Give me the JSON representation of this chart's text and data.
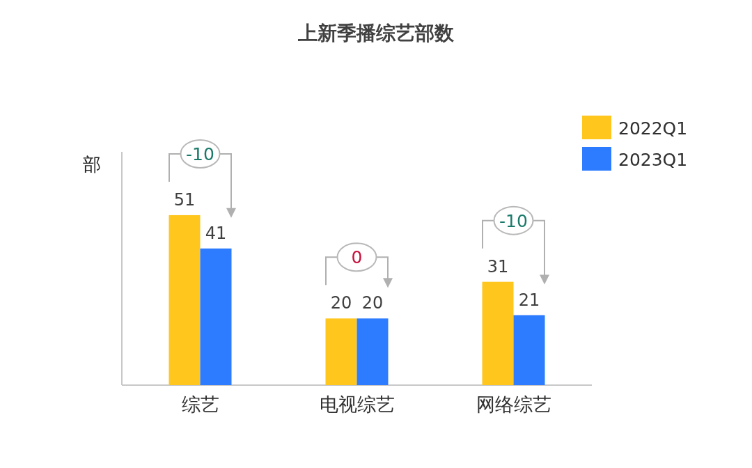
{
  "chart_data": {
    "type": "bar",
    "title": "上新季播综艺部数",
    "ylabel": "部",
    "categories": [
      "综艺",
      "电视综艺",
      "网络综艺"
    ],
    "series": [
      {
        "name": "2022Q1",
        "color": "#ffc61e",
        "values": [
          51,
          20,
          31
        ]
      },
      {
        "name": "2023Q1",
        "color": "#2d7bff",
        "values": [
          41,
          20,
          21
        ]
      }
    ],
    "ylim": [
      0,
      70
    ],
    "tick_labels": "x",
    "data_labels": true,
    "legend": "top right",
    "annotations": [
      "-10",
      "0",
      "-10"
    ]
  }
}
